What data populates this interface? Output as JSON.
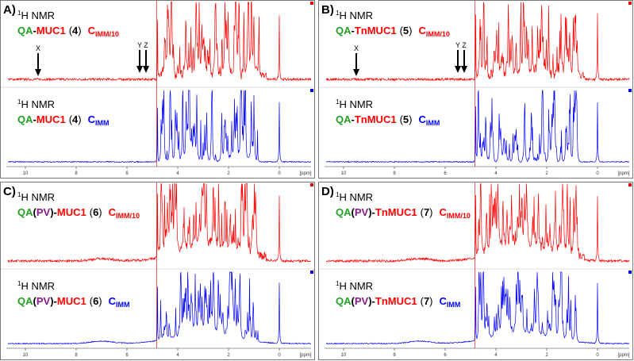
{
  "panels": [
    {
      "label": "A)",
      "arrows": [
        "X",
        "Y",
        "Z"
      ],
      "hump": false,
      "spectra": [
        {
          "sup": "1",
          "nmr": "H NMR",
          "color": "#ff0000",
          "parts": [
            {
              "text": "QA",
              "color": "#22a022",
              "bold": true
            },
            {
              "text": "-",
              "color": "#000000",
              "bold": true
            },
            {
              "text": "MUC1",
              "color": "#ff0000",
              "bold": true
            },
            {
              "text": "(",
              "color": "#000000",
              "bold": false
            },
            {
              "text": "4",
              "color": "#000000",
              "bold": true
            },
            {
              "text": ")",
              "color": "#000000",
              "bold": false
            }
          ],
          "c": "C",
          "sub": "IMM/10"
        },
        {
          "sup": "1",
          "nmr": "H NMR",
          "color": "#0000ff",
          "parts": [
            {
              "text": "QA",
              "color": "#22a022",
              "bold": true
            },
            {
              "text": "-",
              "color": "#000000",
              "bold": true
            },
            {
              "text": "MUC1",
              "color": "#ff0000",
              "bold": true
            },
            {
              "text": "(",
              "color": "#000000",
              "bold": false
            },
            {
              "text": "4",
              "color": "#000000",
              "bold": true
            },
            {
              "text": ")",
              "color": "#000000",
              "bold": false
            }
          ],
          "c": "C",
          "sub": "IMM"
        }
      ]
    },
    {
      "label": "B)",
      "arrows": [
        "X",
        "Y",
        "Z"
      ],
      "hump": false,
      "spectra": [
        {
          "sup": "1",
          "nmr": "H NMR",
          "color": "#ff0000",
          "parts": [
            {
              "text": "QA",
              "color": "#22a022",
              "bold": true
            },
            {
              "text": "-",
              "color": "#000000",
              "bold": true
            },
            {
              "text": "TnMUC1",
              "color": "#ff0000",
              "bold": true
            },
            {
              "text": "(",
              "color": "#000000",
              "bold": false
            },
            {
              "text": "5",
              "color": "#000000",
              "bold": true
            },
            {
              "text": ")",
              "color": "#000000",
              "bold": false
            }
          ],
          "c": "C",
          "sub": "IMM/10"
        },
        {
          "sup": "1",
          "nmr": "H NMR",
          "color": "#0000ff",
          "parts": [
            {
              "text": "QA",
              "color": "#22a022",
              "bold": true
            },
            {
              "text": "-",
              "color": "#000000",
              "bold": true
            },
            {
              "text": "TnMUC1",
              "color": "#ff0000",
              "bold": true
            },
            {
              "text": "(",
              "color": "#000000",
              "bold": false
            },
            {
              "text": "5",
              "color": "#000000",
              "bold": true
            },
            {
              "text": ")",
              "color": "#000000",
              "bold": false
            }
          ],
          "c": "C",
          "sub": "IMM"
        }
      ]
    },
    {
      "label": "C)",
      "arrows": [],
      "hump": true,
      "spectra": [
        {
          "sup": "1",
          "nmr": "H NMR",
          "color": "#ff0000",
          "parts": [
            {
              "text": "QA",
              "color": "#22a022",
              "bold": true
            },
            {
              "text": "(",
              "color": "#000000",
              "bold": true
            },
            {
              "text": "PV",
              "color": "#8b1a8b",
              "bold": true
            },
            {
              "text": ")",
              "color": "#000000",
              "bold": true
            },
            {
              "text": "-",
              "color": "#000000",
              "bold": true
            },
            {
              "text": "MUC1",
              "color": "#ff0000",
              "bold": true
            },
            {
              "text": "(",
              "color": "#000000",
              "bold": false
            },
            {
              "text": "6",
              "color": "#000000",
              "bold": true
            },
            {
              "text": ")",
              "color": "#000000",
              "bold": false
            }
          ],
          "c": "C",
          "sub": "IMM/10"
        },
        {
          "sup": "1",
          "nmr": "H NMR",
          "color": "#0000ff",
          "parts": [
            {
              "text": "QA",
              "color": "#22a022",
              "bold": true
            },
            {
              "text": "(",
              "color": "#000000",
              "bold": true
            },
            {
              "text": "PV",
              "color": "#8b1a8b",
              "bold": true
            },
            {
              "text": ")",
              "color": "#000000",
              "bold": true
            },
            {
              "text": "-",
              "color": "#000000",
              "bold": true
            },
            {
              "text": "MUC1",
              "color": "#ff0000",
              "bold": true
            },
            {
              "text": "(",
              "color": "#000000",
              "bold": false
            },
            {
              "text": "6",
              "color": "#000000",
              "bold": true
            },
            {
              "text": ")",
              "color": "#000000",
              "bold": false
            }
          ],
          "c": "C",
          "sub": "IMM"
        }
      ]
    },
    {
      "label": "D)",
      "arrows": [],
      "hump": true,
      "spectra": [
        {
          "sup": "1",
          "nmr": "H NMR",
          "color": "#ff0000",
          "parts": [
            {
              "text": "QA",
              "color": "#22a022",
              "bold": true
            },
            {
              "text": "(",
              "color": "#000000",
              "bold": true
            },
            {
              "text": "PV",
              "color": "#8b1a8b",
              "bold": true
            },
            {
              "text": ")",
              "color": "#000000",
              "bold": true
            },
            {
              "text": "-",
              "color": "#000000",
              "bold": true
            },
            {
              "text": "TnMUC1",
              "color": "#ff0000",
              "bold": true
            },
            {
              "text": "(",
              "color": "#000000",
              "bold": false
            },
            {
              "text": "7",
              "color": "#000000",
              "bold": true
            },
            {
              "text": ")",
              "color": "#000000",
              "bold": false
            }
          ],
          "c": "C",
          "sub": "IMM/10"
        },
        {
          "sup": "1",
          "nmr": "H NMR",
          "color": "#0000ff",
          "parts": [
            {
              "text": "QA",
              "color": "#22a022",
              "bold": true
            },
            {
              "text": "(",
              "color": "#000000",
              "bold": true
            },
            {
              "text": "PV",
              "color": "#8b1a8b",
              "bold": true
            },
            {
              "text": ")",
              "color": "#000000",
              "bold": true
            },
            {
              "text": "-",
              "color": "#000000",
              "bold": true
            },
            {
              "text": "TnMUC1",
              "color": "#ff0000",
              "bold": true
            },
            {
              "text": "(",
              "color": "#000000",
              "bold": false
            },
            {
              "text": "7",
              "color": "#000000",
              "bold": true
            },
            {
              "text": ")",
              "color": "#000000",
              "bold": false
            }
          ],
          "c": "C",
          "sub": "IMM"
        }
      ]
    }
  ],
  "axis": {
    "ticks": [
      "10",
      "8",
      "6",
      "4",
      "2",
      "0"
    ],
    "unit": "[ppm]"
  }
}
